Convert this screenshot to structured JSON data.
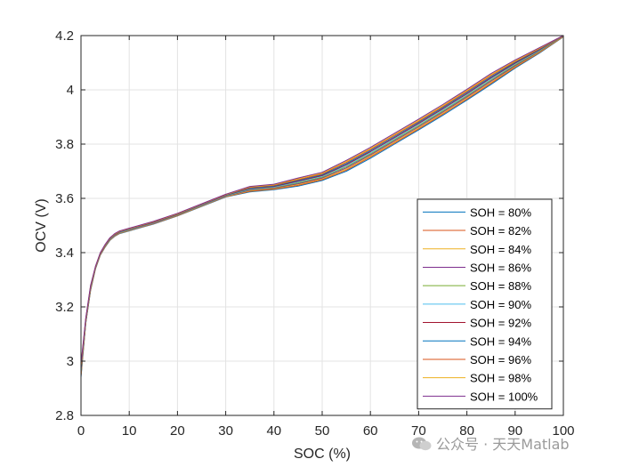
{
  "chart_data": {
    "type": "line",
    "title": "",
    "xlabel": "SOC (%)",
    "ylabel": "OCV (V)",
    "xlim": [
      0,
      100
    ],
    "ylim": [
      2.8,
      4.2
    ],
    "xticks": [
      0,
      10,
      20,
      30,
      40,
      50,
      60,
      70,
      80,
      90,
      100
    ],
    "yticks": [
      2.8,
      3,
      3.2,
      3.4,
      3.6,
      3.8,
      4,
      4.2
    ],
    "ytick_labels": [
      "2.8",
      "3",
      "3.2",
      "3.4",
      "3.6",
      "3.8",
      "4",
      "4.2"
    ],
    "grid": true,
    "legend_position": "bottom-right",
    "x": [
      0,
      1,
      2,
      3,
      4,
      5,
      6,
      7,
      8,
      10,
      12,
      15,
      20,
      25,
      30,
      35,
      40,
      45,
      50,
      55,
      60,
      65,
      70,
      75,
      80,
      85,
      90,
      95,
      100
    ],
    "series": [
      {
        "name": "SOH = 80%",
        "color": "#0072BD",
        "values": [
          2.94,
          3.14,
          3.26,
          3.34,
          3.39,
          3.42,
          3.445,
          3.46,
          3.47,
          3.48,
          3.49,
          3.505,
          3.535,
          3.57,
          3.605,
          3.624,
          3.632,
          3.645,
          3.666,
          3.7,
          3.748,
          3.8,
          3.852,
          3.906,
          3.962,
          4.02,
          4.08,
          4.135,
          4.195
        ]
      },
      {
        "name": "SOH = 82%",
        "color": "#D95319",
        "values": [
          2.945,
          3.142,
          3.262,
          3.341,
          3.391,
          3.421,
          3.446,
          3.461,
          3.471,
          3.481,
          3.491,
          3.506,
          3.536,
          3.571,
          3.606,
          3.626,
          3.634,
          3.648,
          3.669,
          3.704,
          3.752,
          3.804,
          3.856,
          3.91,
          3.966,
          4.024,
          4.083,
          4.137,
          4.196
        ]
      },
      {
        "name": "SOH = 84%",
        "color": "#EDB120",
        "values": [
          2.95,
          3.144,
          3.264,
          3.342,
          3.392,
          3.422,
          3.447,
          3.462,
          3.472,
          3.482,
          3.492,
          3.507,
          3.537,
          3.572,
          3.607,
          3.628,
          3.636,
          3.651,
          3.672,
          3.708,
          3.756,
          3.808,
          3.86,
          3.914,
          3.97,
          4.028,
          4.086,
          4.139,
          4.197
        ]
      },
      {
        "name": "SOH = 86%",
        "color": "#7E2F8E",
        "values": [
          2.955,
          3.146,
          3.266,
          3.343,
          3.393,
          3.423,
          3.448,
          3.463,
          3.473,
          3.483,
          3.493,
          3.508,
          3.538,
          3.573,
          3.608,
          3.63,
          3.638,
          3.654,
          3.675,
          3.712,
          3.76,
          3.812,
          3.864,
          3.918,
          3.974,
          4.032,
          4.089,
          4.141,
          4.198
        ]
      },
      {
        "name": "SOH = 88%",
        "color": "#77AC30",
        "values": [
          2.96,
          3.148,
          3.268,
          3.344,
          3.394,
          3.424,
          3.449,
          3.464,
          3.474,
          3.484,
          3.494,
          3.509,
          3.539,
          3.574,
          3.609,
          3.632,
          3.64,
          3.657,
          3.678,
          3.716,
          3.764,
          3.816,
          3.868,
          3.922,
          3.978,
          4.036,
          4.092,
          4.143,
          4.199
        ]
      },
      {
        "name": "SOH = 90%",
        "color": "#4DBEEE",
        "values": [
          2.965,
          3.15,
          3.27,
          3.345,
          3.395,
          3.425,
          3.45,
          3.465,
          3.475,
          3.485,
          3.495,
          3.51,
          3.54,
          3.575,
          3.61,
          3.634,
          3.642,
          3.66,
          3.681,
          3.72,
          3.768,
          3.82,
          3.872,
          3.926,
          3.982,
          4.04,
          4.095,
          4.145,
          4.2
        ]
      },
      {
        "name": "SOH = 92%",
        "color": "#A2142F",
        "values": [
          2.97,
          3.152,
          3.272,
          3.346,
          3.396,
          3.426,
          3.451,
          3.466,
          3.476,
          3.486,
          3.496,
          3.511,
          3.541,
          3.576,
          3.611,
          3.636,
          3.644,
          3.663,
          3.684,
          3.724,
          3.772,
          3.824,
          3.876,
          3.93,
          3.986,
          4.044,
          4.098,
          4.147,
          4.2
        ]
      },
      {
        "name": "SOH = 94%",
        "color": "#0072BD",
        "values": [
          2.975,
          3.154,
          3.274,
          3.347,
          3.397,
          3.427,
          3.452,
          3.467,
          3.477,
          3.487,
          3.497,
          3.512,
          3.542,
          3.577,
          3.612,
          3.638,
          3.646,
          3.666,
          3.687,
          3.728,
          3.776,
          3.828,
          3.88,
          3.934,
          3.99,
          4.048,
          4.101,
          4.149,
          4.2
        ]
      },
      {
        "name": "SOH = 96%",
        "color": "#D95319",
        "values": [
          2.98,
          3.156,
          3.276,
          3.348,
          3.398,
          3.428,
          3.453,
          3.468,
          3.478,
          3.488,
          3.498,
          3.513,
          3.543,
          3.578,
          3.613,
          3.64,
          3.648,
          3.669,
          3.69,
          3.732,
          3.78,
          3.832,
          3.884,
          3.938,
          3.994,
          4.052,
          4.104,
          4.151,
          4.2
        ]
      },
      {
        "name": "SOH = 98%",
        "color": "#EDB120",
        "values": [
          2.985,
          3.158,
          3.278,
          3.349,
          3.399,
          3.429,
          3.454,
          3.469,
          3.479,
          3.489,
          3.499,
          3.514,
          3.544,
          3.579,
          3.614,
          3.642,
          3.65,
          3.672,
          3.693,
          3.736,
          3.784,
          3.836,
          3.888,
          3.942,
          3.998,
          4.056,
          4.107,
          4.153,
          4.2
        ]
      },
      {
        "name": "SOH = 100%",
        "color": "#7E2F8E",
        "values": [
          2.99,
          3.16,
          3.28,
          3.35,
          3.4,
          3.43,
          3.455,
          3.47,
          3.48,
          3.49,
          3.5,
          3.515,
          3.545,
          3.58,
          3.615,
          3.644,
          3.652,
          3.675,
          3.696,
          3.74,
          3.788,
          3.84,
          3.892,
          3.946,
          4.002,
          4.06,
          4.11,
          4.155,
          4.2
        ]
      }
    ]
  },
  "watermark": {
    "text": "公众号 · 天天Matlab",
    "icon": "wechat-icon",
    "color": "#9a9a9a"
  }
}
